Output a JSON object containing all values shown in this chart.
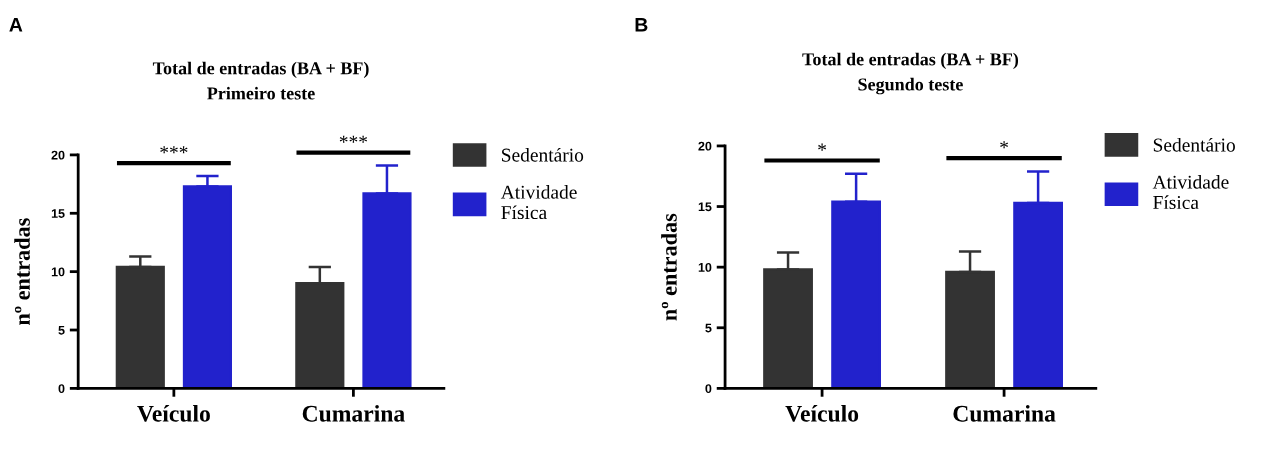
{
  "chart_data": [
    {
      "type": "bar",
      "title": "Total de entradas (BA + BF)\nPrimeiro teste",
      "ylabel": "nº entradas",
      "categories": [
        "Veículo",
        "Cumarina"
      ],
      "series": [
        {
          "name": "Sedentário",
          "color": "#333333",
          "values": [
            10.4,
            9.0
          ],
          "errors": [
            [
              10.4,
              11.3
            ],
            [
              9.0,
              10.4
            ]
          ]
        },
        {
          "name": "Atividade\nFísica",
          "color": "#2222cc",
          "values": [
            17.3,
            16.7
          ],
          "errors": [
            [
              17.3,
              18.2
            ],
            [
              16.7,
              19.1
            ]
          ]
        }
      ],
      "ylim": [
        0,
        20
      ],
      "yticks": [
        0,
        5,
        10,
        15,
        20
      ],
      "grid": false,
      "legend": "top right",
      "annotations": [
        "A",
        "***",
        "***"
      ]
    },
    {
      "type": "bar",
      "title": "Total de entradas (BA + BF)\nSegundo teste",
      "ylabel": "nº entradas",
      "categories": [
        "Veículo",
        "Cumarina"
      ],
      "series": [
        {
          "name": "Sedentário",
          "color": "#333333",
          "values": [
            9.8,
            9.6
          ],
          "errors": [
            [
              9.8,
              11.2
            ],
            [
              9.6,
              11.3
            ]
          ]
        },
        {
          "name": "Atividade\nFísica",
          "color": "#2222cc",
          "values": [
            15.4,
            15.3
          ],
          "errors": [
            [
              15.4,
              17.7
            ],
            [
              15.3,
              17.9
            ]
          ]
        }
      ],
      "ylim": [
        0,
        20
      ],
      "yticks": [
        0,
        5,
        10,
        15,
        20
      ],
      "grid": false,
      "legend": "top right",
      "annotations": [
        "B",
        "*",
        "*"
      ]
    }
  ]
}
